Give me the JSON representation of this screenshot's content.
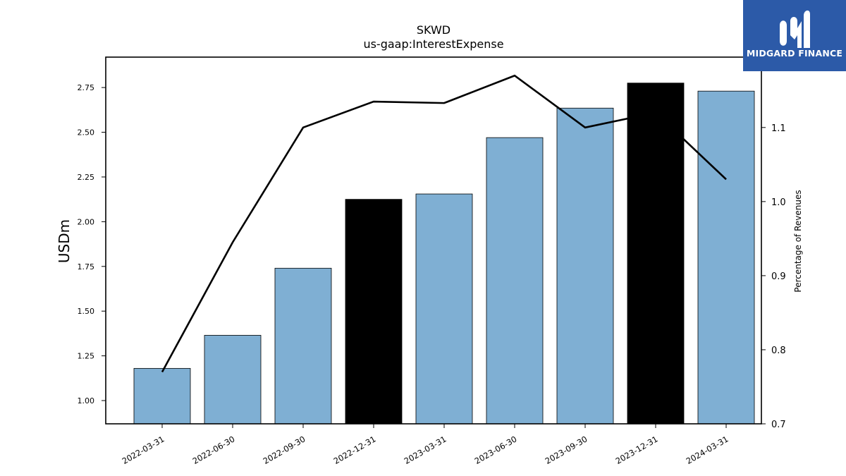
{
  "logo": {
    "text": "MIDGARD FINANCE",
    "icon": "midgard-m-logo-icon",
    "background": "#2c5aa8"
  },
  "chart_data": {
    "type": "bar",
    "title": "SKWD",
    "subtitle": "us-gaap:InterestExpense",
    "ylabel": "USDm",
    "y2label": "Percentage of Revenues",
    "categories": [
      "2022-03-31",
      "2022-06-30",
      "2022-09-30",
      "2022-12-31",
      "2023-03-31",
      "2023-06-30",
      "2023-09-30",
      "2023-12-31",
      "2024-03-31"
    ],
    "series": [
      {
        "type": "bar",
        "axis": "left",
        "values": [
          1.18,
          1.365,
          1.74,
          2.125,
          2.155,
          2.47,
          2.635,
          2.775,
          2.73
        ],
        "colors": [
          "#7fafd3",
          "#7fafd3",
          "#7fafd3",
          "#000000",
          "#7fafd3",
          "#7fafd3",
          "#7fafd3",
          "#000000",
          "#7fafd3"
        ]
      },
      {
        "type": "line",
        "axis": "right",
        "values": [
          0.77,
          0.945,
          1.1,
          1.135,
          1.133,
          1.17,
          1.1,
          1.12,
          1.03
        ],
        "color": "#000000"
      }
    ],
    "ylim": [
      0.87,
      2.92
    ],
    "y2lim": [
      0.7,
      1.195
    ],
    "yticks": [
      "1.00",
      "1.25",
      "1.50",
      "1.75",
      "2.00",
      "2.25",
      "2.50",
      "2.75"
    ],
    "y2ticks": [
      "0.7",
      "0.8",
      "0.9",
      "1.0",
      "1.1"
    ],
    "grid": false,
    "legend": "none"
  }
}
